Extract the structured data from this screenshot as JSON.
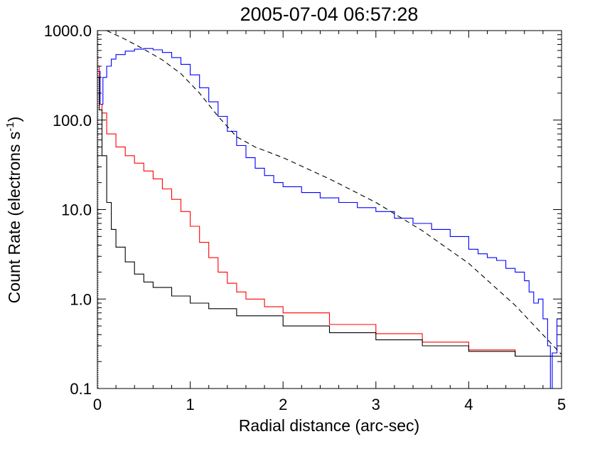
{
  "chart_data": {
    "type": "line",
    "title": "2005-07-04  06:57:28",
    "xlabel": "Radial distance (arc-sec)",
    "ylabel_main": "Count Rate (electrons s",
    "ylabel_sup": "-1",
    "ylabel_close": ")",
    "xlim": [
      0,
      5
    ],
    "ylim": [
      0.1,
      1000
    ],
    "yscale": "log",
    "grid": false,
    "xticks": [
      {
        "value": 0,
        "label": "0"
      },
      {
        "value": 1,
        "label": "1"
      },
      {
        "value": 2,
        "label": "2"
      },
      {
        "value": 3,
        "label": "3"
      },
      {
        "value": 4,
        "label": "4"
      },
      {
        "value": 5,
        "label": "5"
      }
    ],
    "yticks": [
      {
        "value": 0.1,
        "label": "0.1"
      },
      {
        "value": 1,
        "label": "1.0"
      },
      {
        "value": 10,
        "label": "10.0"
      },
      {
        "value": 100,
        "label": "100.0"
      },
      {
        "value": 1000,
        "label": "1000.0"
      }
    ],
    "series": [
      {
        "color": "#0000ff",
        "style": "step",
        "x": [
          0.0,
          0.03,
          0.06,
          0.1,
          0.15,
          0.2,
          0.3,
          0.4,
          0.5,
          0.6,
          0.7,
          0.8,
          0.9,
          1.0,
          1.1,
          1.2,
          1.3,
          1.4,
          1.5,
          1.6,
          1.7,
          1.8,
          1.9,
          2.0,
          2.2,
          2.4,
          2.6,
          2.8,
          3.0,
          3.2,
          3.4,
          3.6,
          3.8,
          4.0,
          4.1,
          4.2,
          4.3,
          4.4,
          4.5,
          4.6,
          4.65,
          4.7,
          4.75,
          4.8,
          4.85,
          4.88,
          4.9,
          4.95,
          5.0
        ],
        "y": [
          350,
          150,
          300,
          400,
          480,
          540,
          590,
          620,
          630,
          610,
          570,
          500,
          420,
          320,
          230,
          160,
          110,
          75,
          52,
          38,
          29,
          24,
          20,
          18,
          15.5,
          13.5,
          12,
          10.5,
          9.5,
          8,
          7,
          6,
          5,
          3.6,
          3.2,
          2.9,
          2.7,
          2.2,
          2.0,
          1.6,
          1.2,
          0.9,
          1.0,
          0.6,
          0.3,
          0.1,
          0.25,
          0.6,
          0.8
        ]
      },
      {
        "color": "#ff0000",
        "style": "step",
        "x": [
          0.0,
          0.02,
          0.05,
          0.1,
          0.2,
          0.3,
          0.4,
          0.5,
          0.6,
          0.7,
          0.8,
          0.9,
          1.0,
          1.1,
          1.2,
          1.3,
          1.4,
          1.5,
          1.6,
          1.8,
          2.0,
          2.5,
          3.0,
          3.5,
          4.0,
          4.5,
          5.0
        ],
        "y": [
          400,
          150,
          120,
          70,
          50,
          40,
          33,
          27,
          22,
          17,
          13,
          9.5,
          6.5,
          4.3,
          2.9,
          2.0,
          1.5,
          1.2,
          1.0,
          0.82,
          0.7,
          0.52,
          0.41,
          0.33,
          0.27,
          0.23,
          0.19
        ]
      },
      {
        "color": "#000000",
        "style": "step",
        "x": [
          0.0,
          0.02,
          0.05,
          0.1,
          0.15,
          0.2,
          0.3,
          0.4,
          0.5,
          0.6,
          0.8,
          1.0,
          1.2,
          1.5,
          2.0,
          2.5,
          3.0,
          3.5,
          4.0,
          4.5,
          5.0
        ],
        "y": [
          300,
          130,
          40,
          12,
          6,
          3.8,
          2.6,
          1.9,
          1.55,
          1.35,
          1.08,
          0.9,
          0.78,
          0.65,
          0.5,
          0.42,
          0.35,
          0.3,
          0.26,
          0.23,
          0.2
        ]
      },
      {
        "color": "#000000",
        "style": "dashed",
        "x": [
          0.1,
          0.3,
          0.5,
          0.7,
          0.9,
          1.1,
          1.3,
          1.5,
          1.7,
          2.0,
          2.5,
          3.0,
          3.5,
          4.0,
          4.5,
          5.0
        ],
        "y": [
          1000,
          800,
          620,
          470,
          330,
          200,
          110,
          65,
          50,
          38,
          22,
          12,
          5.8,
          2.5,
          0.85,
          0.24
        ]
      }
    ]
  }
}
